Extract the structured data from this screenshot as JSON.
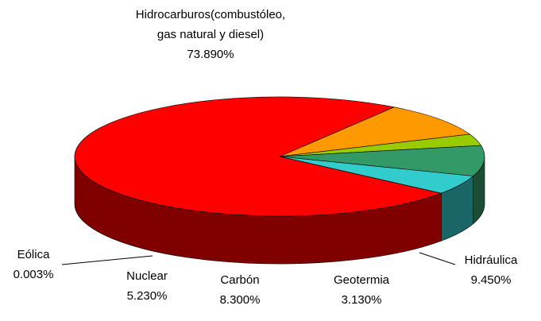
{
  "chart_data": {
    "type": "pie3d",
    "categories": [
      "Hidrocarburos(combustóleo, gas natural y diesel)",
      "Hidráulica",
      "Geotermia",
      "Carbón",
      "Nuclear",
      "Eólica"
    ],
    "values": [
      73.89,
      9.45,
      3.13,
      8.3,
      5.23,
      0.003
    ],
    "value_labels": [
      "73.890%",
      "9.450%",
      "3.130%",
      "8.300%",
      "5.230%",
      "0.003%"
    ],
    "colors": [
      "#ff0000",
      "#ff9900",
      "#99cc00",
      "#339966",
      "#33cccc",
      "#3366ff"
    ]
  }
}
